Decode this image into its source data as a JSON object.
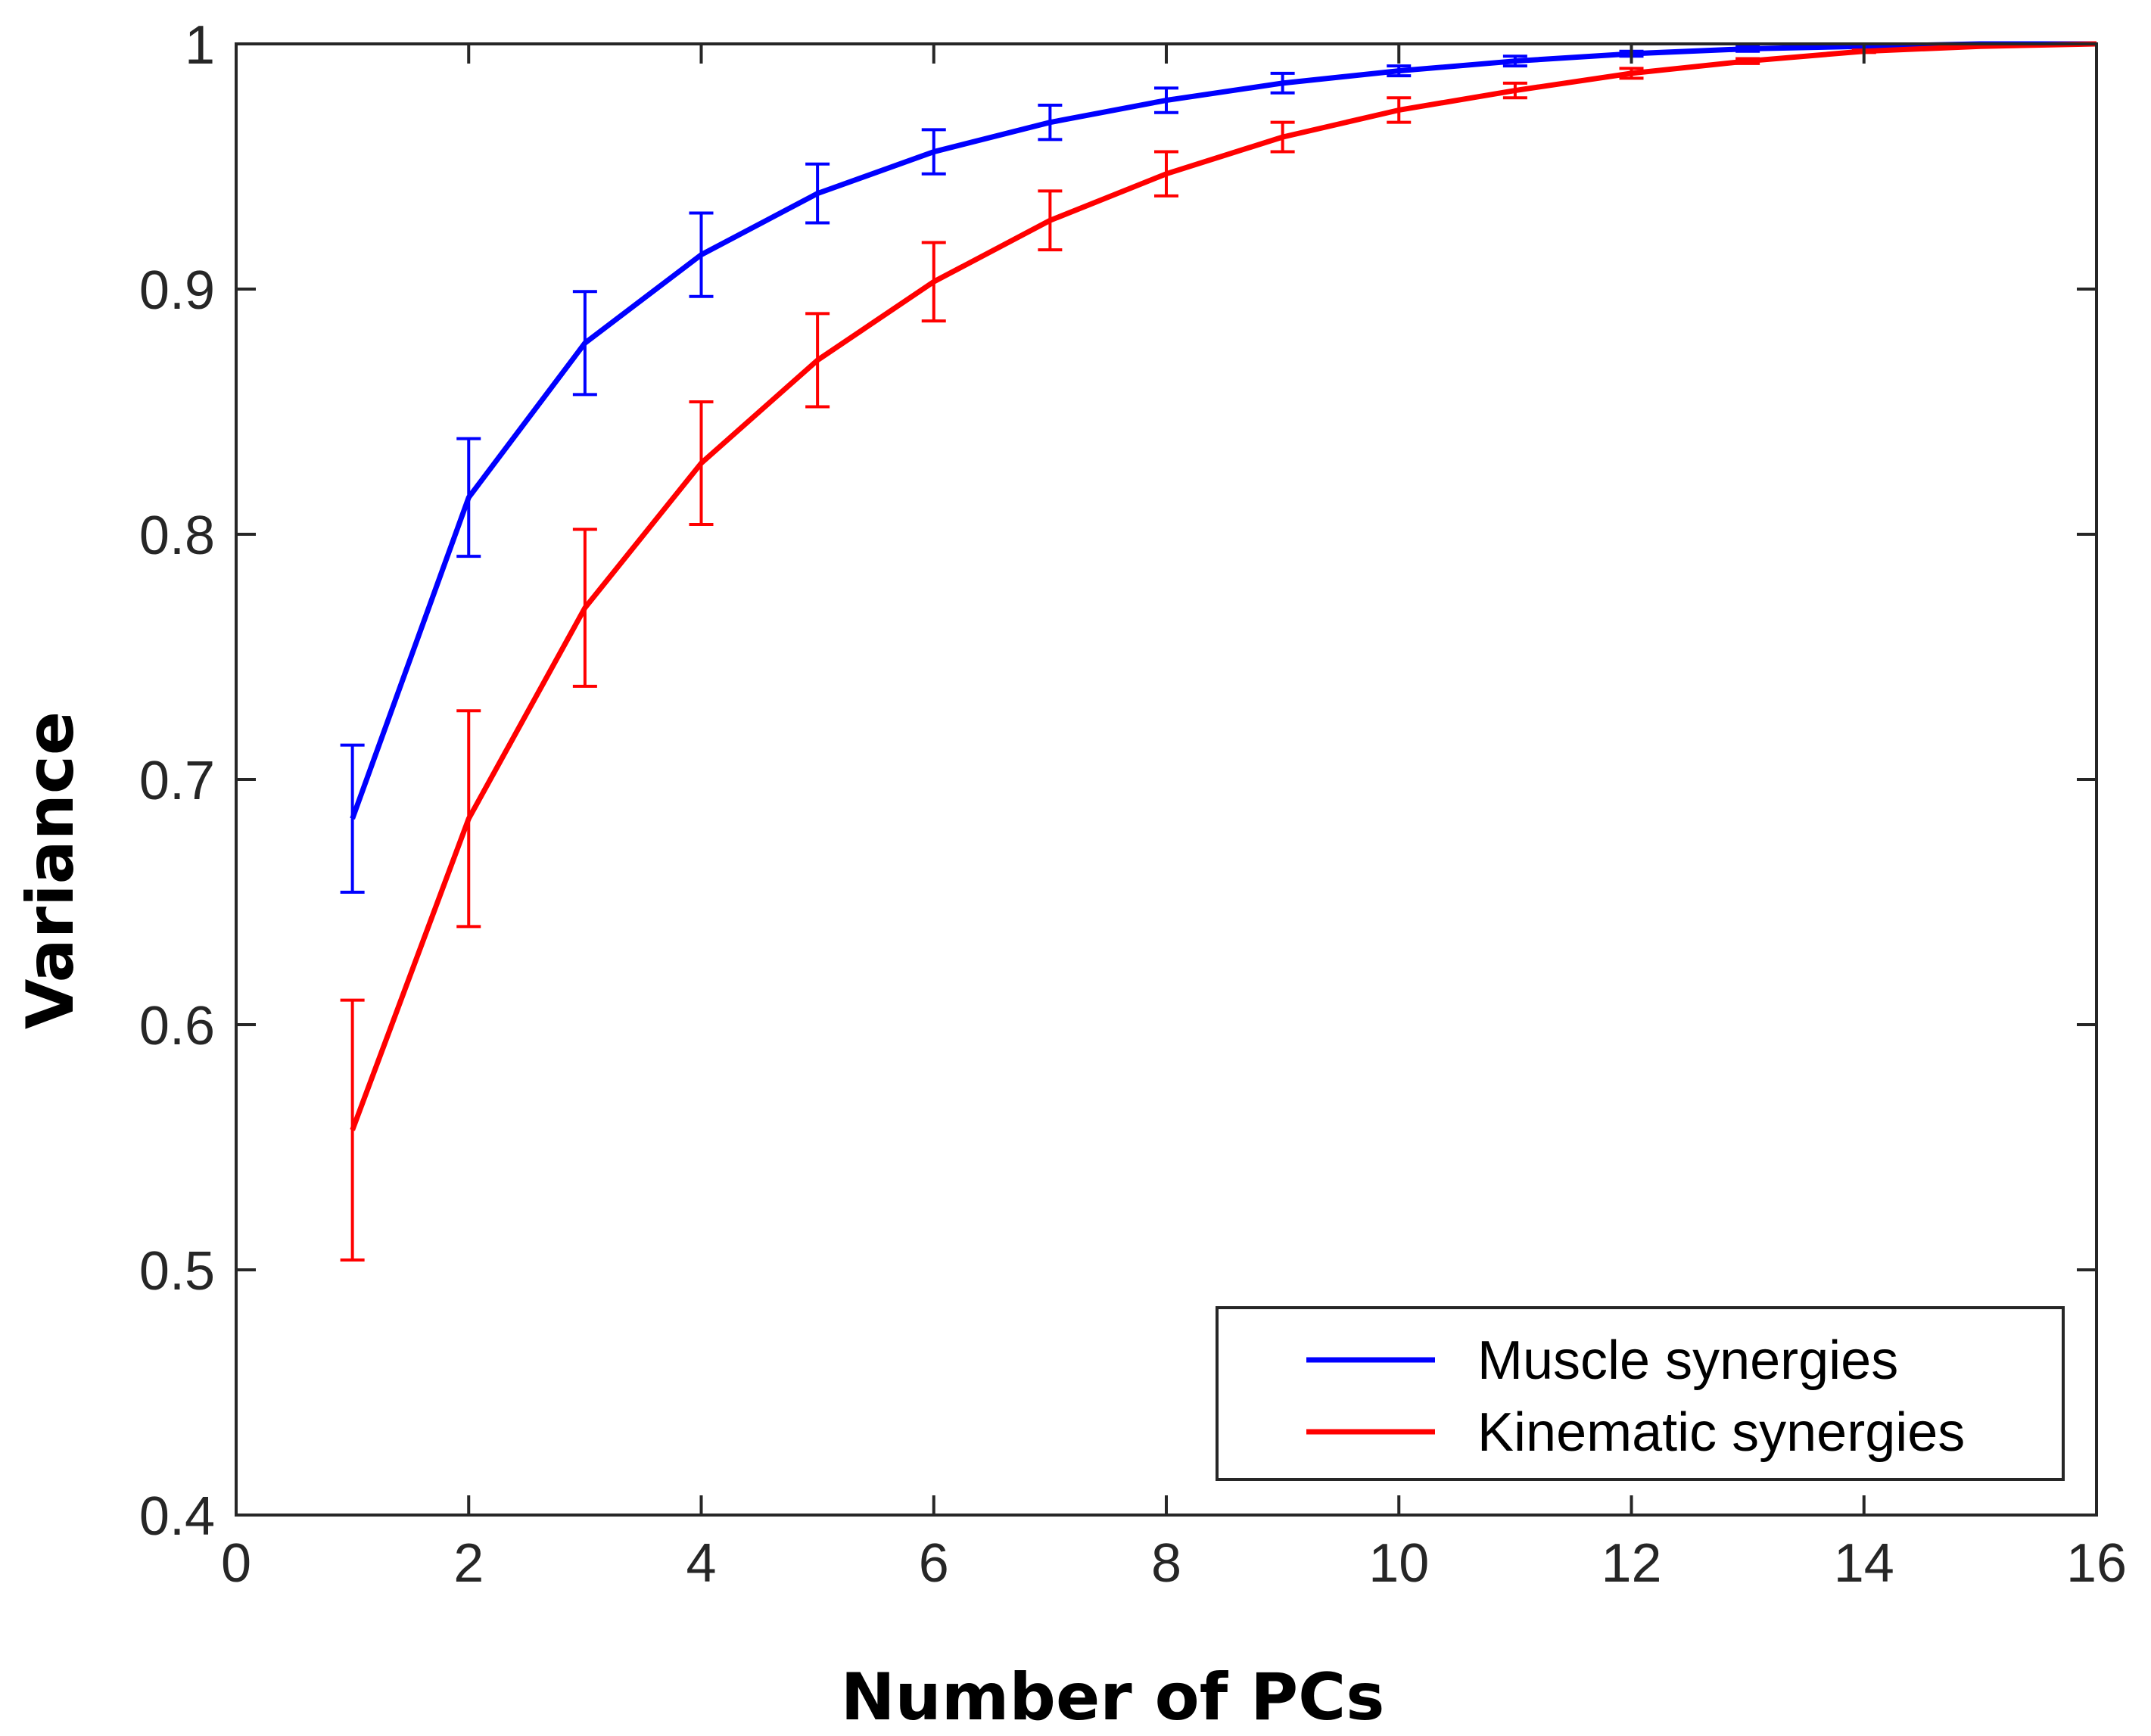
{
  "chart_data": {
    "type": "line",
    "title": "",
    "xlabel": "Number of PCs",
    "ylabel": "Variance",
    "xlim": [
      0,
      16
    ],
    "ylim": [
      0.4,
      1.0
    ],
    "xticks": [
      0,
      2,
      4,
      6,
      8,
      10,
      12,
      14,
      16
    ],
    "yticks": [
      0.4,
      0.5,
      0.6,
      0.7,
      0.8,
      0.9,
      1.0
    ],
    "xtick_labels": [
      "0",
      "2",
      "4",
      "6",
      "8",
      "10",
      "12",
      "14",
      "16"
    ],
    "ytick_labels": [
      "0.4",
      "0.5",
      "0.6",
      "0.7",
      "0.8",
      "0.9",
      "1"
    ],
    "grid": false,
    "legend_position": "bottom-right",
    "series": [
      {
        "name": "Muscle synergies",
        "color": "#0000ff",
        "x": [
          1,
          2,
          3,
          4,
          5,
          6,
          7,
          8,
          9,
          10,
          11,
          12,
          13,
          14,
          15,
          16
        ],
        "values": [
          0.684,
          0.815,
          0.878,
          0.914,
          0.939,
          0.956,
          0.968,
          0.977,
          0.984,
          0.989,
          0.993,
          0.996,
          0.998,
          0.999,
          1.0,
          1.0
        ],
        "errors": [
          0.03,
          0.024,
          0.021,
          0.017,
          0.012,
          0.009,
          0.007,
          0.005,
          0.004,
          0.002,
          0.002,
          0.001,
          0.001,
          0.0005,
          0.0,
          0.0
        ]
      },
      {
        "name": "Kinematic synergies",
        "color": "#ff0000",
        "x": [
          1,
          2,
          3,
          4,
          5,
          6,
          7,
          8,
          9,
          10,
          11,
          12,
          13,
          14,
          15,
          16
        ],
        "values": [
          0.557,
          0.684,
          0.77,
          0.829,
          0.871,
          0.903,
          0.928,
          0.947,
          0.962,
          0.973,
          0.981,
          0.988,
          0.993,
          0.997,
          0.999,
          1.0
        ],
        "errors": [
          0.053,
          0.044,
          0.032,
          0.025,
          0.019,
          0.016,
          0.012,
          0.009,
          0.006,
          0.005,
          0.003,
          0.002,
          0.001,
          0.0005,
          0.0,
          0.0
        ]
      }
    ]
  }
}
